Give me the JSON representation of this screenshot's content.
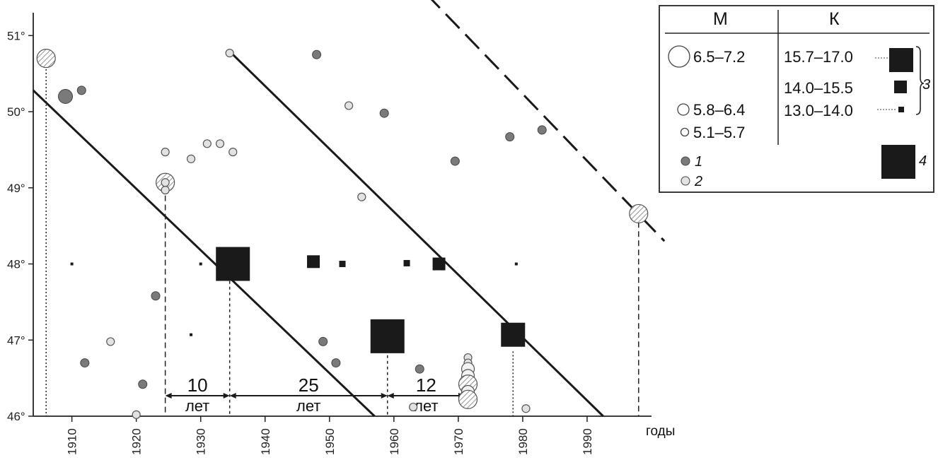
{
  "chart_data": {
    "type": "scatter",
    "xlabel": "годы",
    "xlim": [
      1904,
      2000
    ],
    "ylim": [
      46,
      51.3
    ],
    "x_ticks": [
      "1910",
      "1920",
      "1930",
      "1940",
      "1950",
      "1960",
      "1970",
      "1980",
      "1990"
    ],
    "y_ticks": [
      "51°",
      "50°",
      "49°",
      "48°",
      "47°",
      "46°"
    ],
    "hatch_color": "#777777",
    "dark_dot_color": "#7a7a7a",
    "light_dot_color": "#e2e2e2",
    "earthquakes_1": [
      [
        1909,
        50.2,
        "large"
      ],
      [
        1911.5,
        50.28
      ],
      [
        1948,
        50.75
      ],
      [
        1958.5,
        49.98
      ],
      [
        1978,
        49.67
      ],
      [
        1983,
        49.76
      ],
      [
        1969.5,
        49.35
      ],
      [
        1923,
        47.58
      ],
      [
        1912,
        46.7
      ],
      [
        1921,
        46.42
      ],
      [
        1949,
        46.98
      ],
      [
        1951,
        46.7
      ],
      [
        1964,
        46.62
      ]
    ],
    "earthquakes_2": [
      [
        1906,
        50.7,
        "large-hatched"
      ],
      [
        1934.5,
        50.77
      ],
      [
        1924.5,
        49.47
      ],
      [
        1928.5,
        49.38
      ],
      [
        1931,
        49.58
      ],
      [
        1933,
        49.58
      ],
      [
        1935,
        49.47
      ],
      [
        1953,
        50.08
      ],
      [
        1955,
        48.88
      ],
      [
        1924.5,
        49.07,
        "large-hatched"
      ],
      [
        1924.5,
        48.97
      ],
      [
        1924.5,
        49.07
      ],
      [
        1916,
        46.98
      ],
      [
        1920,
        46.02
      ],
      [
        1963,
        46.12
      ],
      [
        1980.5,
        46.1
      ],
      [
        1998,
        48.66,
        "large-hatched"
      ],
      [
        1971.5,
        46.77
      ],
      [
        1971.5,
        46.7
      ],
      [
        1971.5,
        46.62,
        "mid"
      ],
      [
        1971.5,
        46.53,
        "mid"
      ],
      [
        1971.5,
        46.42,
        "large-hatched"
      ],
      [
        1971.5,
        46.32,
        "mid"
      ],
      [
        1971.5,
        46.22,
        "large-hatched"
      ]
    ],
    "squares": [
      {
        "x": 1910,
        "y": 48.0,
        "size": "tiny"
      },
      {
        "x": 1928.5,
        "y": 47.07,
        "size": "tiny"
      },
      {
        "x": 1930,
        "y": 48.0,
        "size": "tiny"
      },
      {
        "x": 1935,
        "y": 48.0,
        "size": "huge"
      },
      {
        "x": 1947.5,
        "y": 48.03,
        "size": "medium"
      },
      {
        "x": 1952,
        "y": 48.0,
        "size": "small"
      },
      {
        "x": 1962,
        "y": 48.01,
        "size": "small"
      },
      {
        "x": 1967,
        "y": 48.0,
        "size": "medium"
      },
      {
        "x": 1979,
        "y": 48.0,
        "size": "tiny"
      },
      {
        "x": 1959,
        "y": 47.05,
        "size": "huge"
      },
      {
        "x": 1978.5,
        "y": 47.07,
        "size": "large"
      }
    ],
    "trend_lines": [
      {
        "style": "solid",
        "from": [
          1904,
          50.28
        ],
        "to": [
          1957,
          46
        ]
      },
      {
        "style": "solid",
        "from": [
          1935,
          50.75
        ],
        "to": [
          1992.5,
          46
        ]
      },
      {
        "style": "dashed",
        "from": [
          1965,
          51.55
        ],
        "to": [
          2002,
          48.3
        ]
      }
    ],
    "intervals": [
      {
        "value": "10",
        "unit": "лет",
        "from": 1924.5,
        "to": 1934.5
      },
      {
        "value": "25",
        "unit": "лет",
        "from": 1934.5,
        "to": 1959
      },
      {
        "value": "12",
        "unit": "лет",
        "from": 1959,
        "to": 1971
      }
    ],
    "legend": {
      "col_m": "М",
      "col_k": "К",
      "m_ranges": [
        "6.5–7.2",
        "5.8–6.4",
        "5.1–5.7"
      ],
      "k_ranges": [
        "15.7–17.0",
        "14.0–15.5",
        "13.0–14.0"
      ],
      "markers": [
        "1",
        "2",
        "3",
        "4"
      ]
    }
  }
}
